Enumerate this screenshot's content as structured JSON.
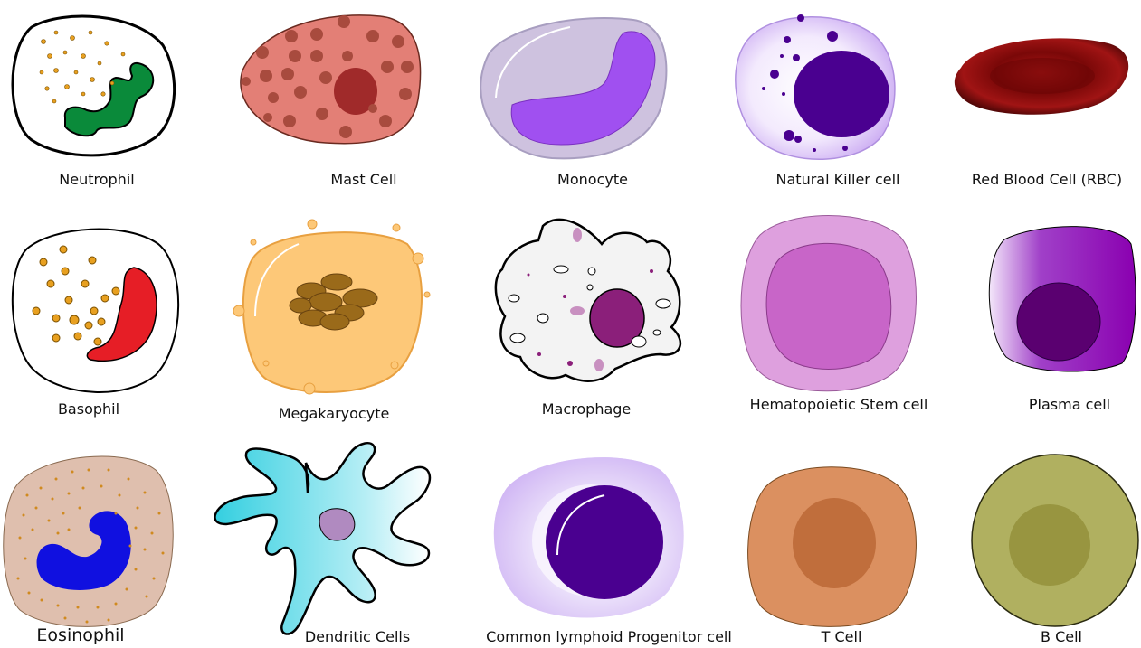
{
  "cells": [
    {
      "id": "neutrophil",
      "label": "Neutrophil"
    },
    {
      "id": "mast",
      "label": "Mast Cell"
    },
    {
      "id": "monocyte",
      "label": "Monocyte"
    },
    {
      "id": "nk",
      "label": "Natural Killer cell"
    },
    {
      "id": "rbc",
      "label": "Red Blood Cell (RBC)"
    },
    {
      "id": "basophil",
      "label": "Basophil"
    },
    {
      "id": "megakaryocyte",
      "label": "Megakaryocyte"
    },
    {
      "id": "macrophage",
      "label": "Macrophage"
    },
    {
      "id": "hsc",
      "label": "Hematopoietic Stem cell"
    },
    {
      "id": "plasma",
      "label": "Plasma cell"
    },
    {
      "id": "eosinophil",
      "label": "Eosinophil"
    },
    {
      "id": "dendritic",
      "label": "Dendritic Cells"
    },
    {
      "id": "clp",
      "label": "Common lymphoid Progenitor cell"
    },
    {
      "id": "tcell",
      "label": "T Cell"
    },
    {
      "id": "bcell",
      "label": "B Cell"
    }
  ],
  "colors": {
    "neutrophil_nucleus": "#0a8a3a",
    "granule_orange": "#e8a020",
    "mast_body": "#e37f76",
    "mast_granule": "#a84b3e",
    "monocyte_body": "#cec2df",
    "monocyte_nucleus": "#a050f0",
    "nk_body": "#d8bff5",
    "nk_nucleus": "#4a0090",
    "rbc": "#8a0f0f",
    "basophil_nucleus": "#e61e26",
    "megakaryocyte_body": "#fdc878",
    "megakaryocyte_nucleus": "#9a6a1a",
    "macrophage_body": "#f3f3f3",
    "macrophage_nucleus": "#8b1f7a",
    "hsc_outer": "#dea0de",
    "hsc_inner": "#c865c8",
    "plasma_body": "#8a10b0",
    "plasma_nucleus": "#5a0070",
    "eosinophil_body": "#dfbfae",
    "eosinophil_nucleus": "#1010e0",
    "dendritic_body": "#5ad8e8",
    "dendritic_nucleus": "#b08ac0",
    "clp_body": "#d8c4f5",
    "clp_nucleus": "#4a0090",
    "tcell_body": "#db9060",
    "tcell_nucleus": "#c06e3c",
    "bcell_body": "#b0b060",
    "bcell_nucleus": "#989540"
  }
}
